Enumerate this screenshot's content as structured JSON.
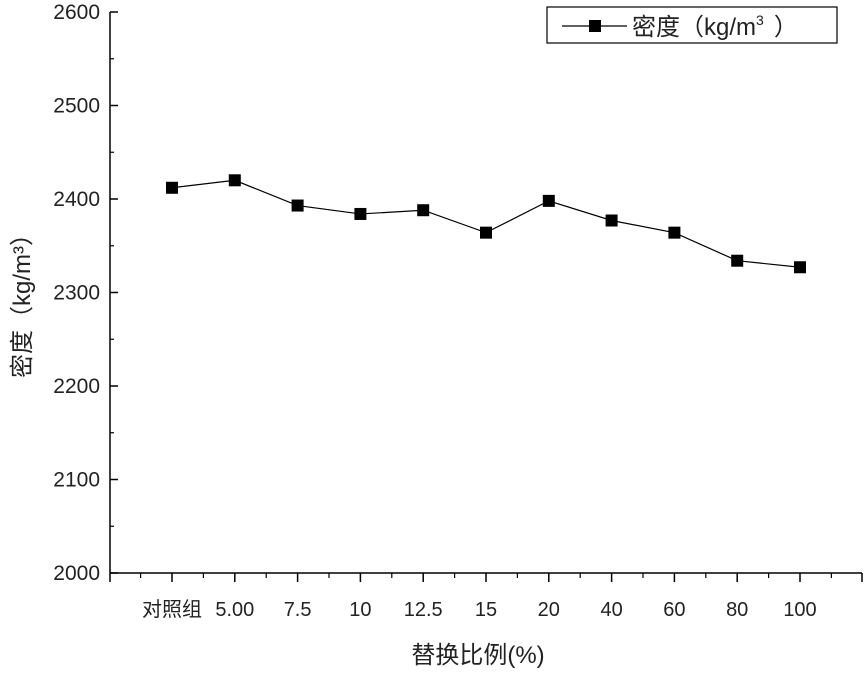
{
  "chart_data": {
    "type": "line",
    "categories": [
      "对照组",
      "5.00",
      "7.5",
      "10",
      "12.5",
      "15",
      "20",
      "40",
      "60",
      "80",
      "100"
    ],
    "series": [
      {
        "name": "密度（kg/m³）",
        "values": [
          2412,
          2420,
          2393,
          2384,
          2388,
          2364,
          2398,
          2377,
          2364,
          2334,
          2327
        ],
        "color": "#000000",
        "marker": "square"
      }
    ],
    "xlabel": "替换比例(%)",
    "ylabel": "密度（kg/m³）",
    "ylim": [
      2000,
      2600
    ],
    "yticks": [
      2000,
      2100,
      2200,
      2300,
      2400,
      2500,
      2600
    ],
    "grid": false,
    "legend": {
      "position": "top-right",
      "text_main": "密度（kg/m",
      "text_sup": "3",
      "text_end": "）"
    }
  }
}
